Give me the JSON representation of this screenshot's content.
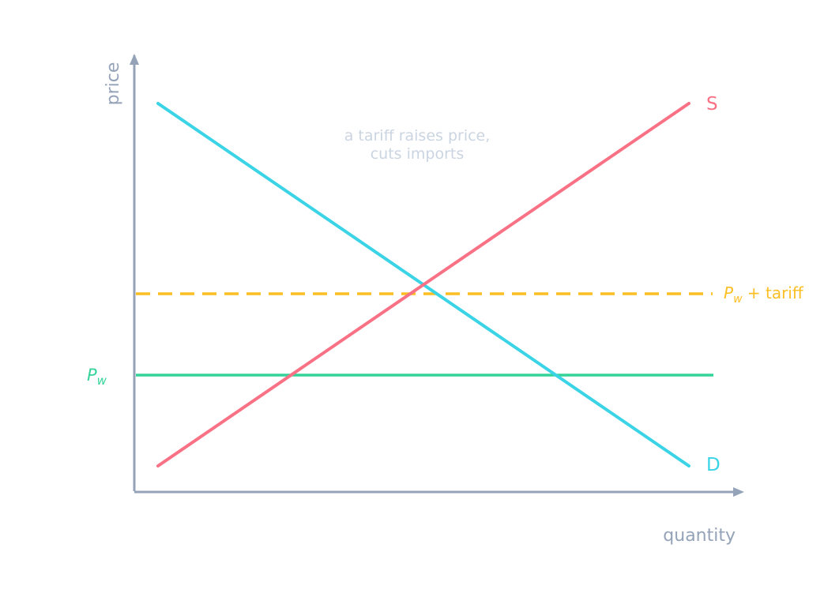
{
  "axes": {
    "y_label": "price",
    "x_label": "quantity",
    "color": "#94a3b8"
  },
  "annotation": {
    "line1": "a tariff raises price,",
    "line2": "cuts imports",
    "color": "#cbd5e1"
  },
  "curves": {
    "supply": {
      "label": "S",
      "color": "#f87185"
    },
    "demand": {
      "label": "D",
      "color": "#3bd4e6"
    }
  },
  "world_price": {
    "symbol": "P",
    "subscript": "w",
    "color": "#34d399"
  },
  "tariff_price": {
    "symbol": "P",
    "subscript": "w",
    "suffix": " + tariff",
    "color": "#fbbf24"
  }
}
